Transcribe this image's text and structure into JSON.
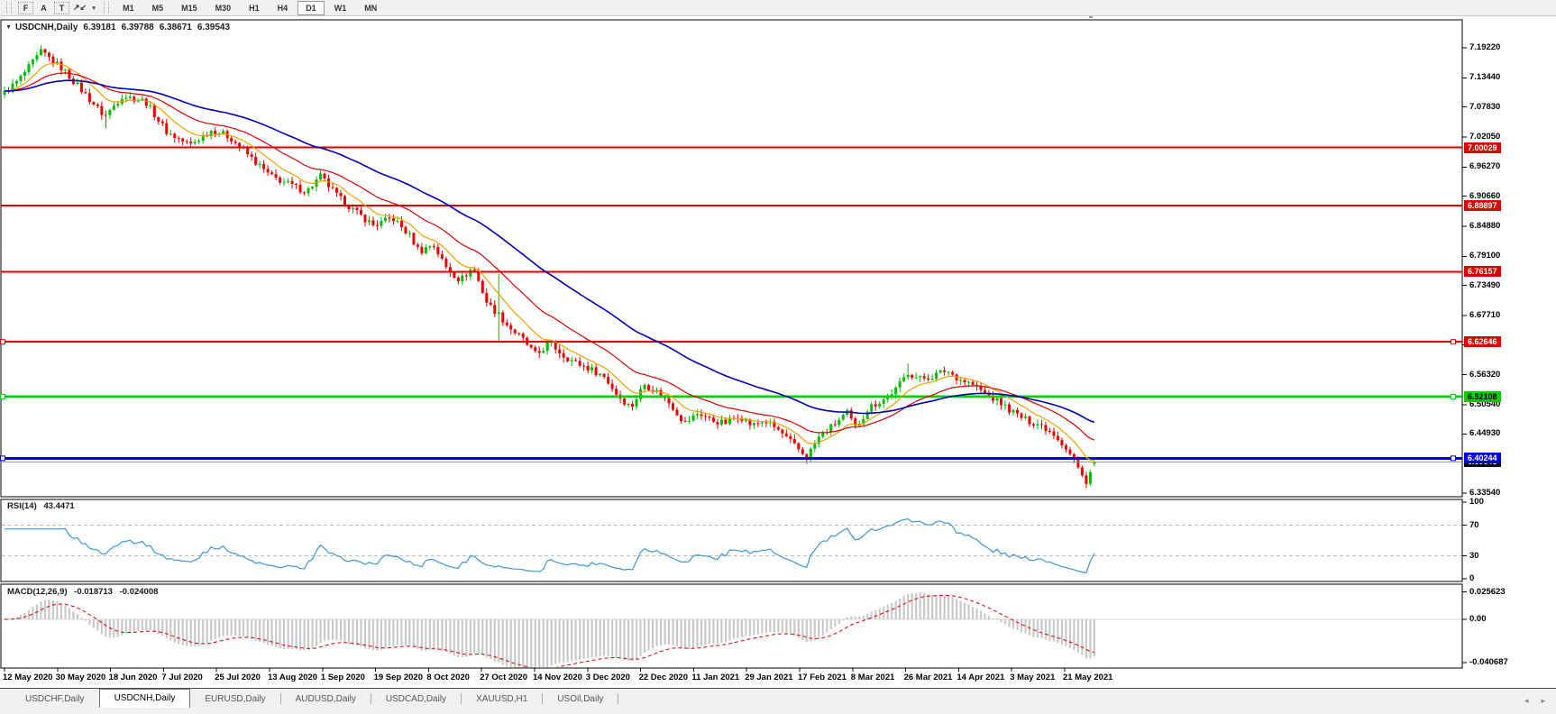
{
  "toolbar": {
    "tools": [
      {
        "name": "fibonacci-retracement",
        "glyph": "F",
        "boxed": true
      },
      {
        "name": "text",
        "glyph": "A",
        "boxed": false
      },
      {
        "name": "text-label",
        "glyph": "T",
        "boxed": true
      },
      {
        "name": "arrows",
        "glyph": "↗↙",
        "boxed": false
      },
      {
        "name": "arrows-dropdown",
        "glyph": "▾",
        "boxed": false
      }
    ],
    "timeframes": [
      "M1",
      "M5",
      "M15",
      "M30",
      "H1",
      "H4",
      "D1",
      "W1",
      "MN"
    ],
    "active_timeframe": "D1"
  },
  "chart": {
    "title": {
      "marker": "▼",
      "symbol": "USDCNH,Daily",
      "open": "6.39181",
      "high": "6.39788",
      "low": "6.38671",
      "close": "6.39543"
    },
    "shift_marker": "▲",
    "price_axis": {
      "ticks": [
        "7.19220",
        "7.13440",
        "7.07830",
        "7.02050",
        "6.96270",
        "6.90660",
        "6.84880",
        "6.79100",
        "6.73490",
        "6.67710",
        "6.62100",
        "6.56320",
        "6.50540",
        "6.44930",
        "6.33540"
      ]
    },
    "levels": [
      {
        "price": "7.00029",
        "color": "red",
        "handles": false
      },
      {
        "price": "6.88897",
        "color": "red",
        "handles": false
      },
      {
        "price": "6.76157",
        "color": "red",
        "handles": false
      },
      {
        "price": "6.62646",
        "color": "red",
        "handles": true
      },
      {
        "price": "6.52108",
        "color": "green",
        "handles": true
      },
      {
        "price": "6.40244",
        "color": "blue",
        "handles": true
      }
    ],
    "bid": {
      "price": "6.39543"
    }
  },
  "rsi": {
    "label": "RSI(14)",
    "value": "43.4471",
    "period": 14,
    "ticks": [
      "100",
      "70",
      "30",
      "0"
    ],
    "upper_level": 70,
    "lower_level": 30
  },
  "macd": {
    "label": "MACD(12,26,9)",
    "macd_value": "-0.018713",
    "signal_value": "-0.024008",
    "fast": 12,
    "slow": 26,
    "signal": 9,
    "ticks": [
      "0.025623",
      "0.00",
      "-0.040687"
    ]
  },
  "date_axis": {
    "labels": [
      "12 May 2020",
      "30 May 2020",
      "18 Jun 2020",
      "7 Jul 2020",
      "25 Jul 2020",
      "13 Aug 2020",
      "1 Sep 2020",
      "19 Sep 2020",
      "8 Oct 2020",
      "27 Oct 2020",
      "14 Nov 2020",
      "3 Dec 2020",
      "22 Dec 2020",
      "11 Jan 2021",
      "29 Jan 2021",
      "17 Feb 2021",
      "8 Mar 2021",
      "26 Mar 2021",
      "14 Apr 2021",
      "3 May 2021",
      "21 May 2021"
    ]
  },
  "tabs": {
    "items": [
      {
        "label": "USDCHF,Daily",
        "active": false
      },
      {
        "label": "USDCNH,Daily",
        "active": true
      },
      {
        "label": "EURUSD,Daily",
        "active": false
      },
      {
        "label": "AUDUSD,Daily",
        "active": false
      },
      {
        "label": "USDCAD,Daily",
        "active": false
      },
      {
        "label": "XAUUSD,H1",
        "active": false
      },
      {
        "label": "USOil,Daily",
        "active": false
      }
    ],
    "scroll_left": "◂",
    "scroll_right": "▸"
  },
  "colors": {
    "bull": "#00bd00",
    "bear": "#ee0000",
    "ma_fast": "#efa100",
    "ma_mid": "#e00000",
    "ma_slow": "#0000bb",
    "level_red": "#e00000",
    "level_green": "#00d300",
    "level_blue": "#0000e6",
    "bid_line": "#9a9a9a",
    "rsi_line": "#3d96dc",
    "rsi_level": "#bdbdbd",
    "macd_hist": "#c6c6c6",
    "macd_signal": "#e00000",
    "label_red_bg": "#dd0000",
    "label_green_bg": "#00cc00",
    "label_blue_bg": "#0000dd",
    "label_black_bg": "#000000"
  },
  "chart_data": {
    "type": "candlestick",
    "symbol": "USDCNH",
    "timeframe": "Daily",
    "num_candles": 270,
    "price_range_top": 7.1922,
    "price_range_bottom": 6.3354,
    "rsi_range": [
      0,
      100
    ],
    "macd_range": [
      -0.040687,
      0.025623
    ],
    "price_anchors": [
      [
        0.0,
        7.105
      ],
      [
        0.013,
        7.13
      ],
      [
        0.034,
        7.185
      ],
      [
        0.054,
        7.15
      ],
      [
        0.071,
        7.11
      ],
      [
        0.092,
        7.06
      ],
      [
        0.108,
        7.1
      ],
      [
        0.129,
        7.09
      ],
      [
        0.149,
        7.03
      ],
      [
        0.17,
        7.005
      ],
      [
        0.191,
        7.035
      ],
      [
        0.207,
        7.02
      ],
      [
        0.224,
        6.985
      ],
      [
        0.244,
        6.945
      ],
      [
        0.261,
        6.93
      ],
      [
        0.277,
        6.915
      ],
      [
        0.29,
        6.945
      ],
      [
        0.306,
        6.905
      ],
      [
        0.323,
        6.875
      ],
      [
        0.339,
        6.85
      ],
      [
        0.356,
        6.865
      ],
      [
        0.372,
        6.83
      ],
      [
        0.381,
        6.8
      ],
      [
        0.393,
        6.815
      ],
      [
        0.405,
        6.77
      ],
      [
        0.418,
        6.745
      ],
      [
        0.43,
        6.77
      ],
      [
        0.443,
        6.7
      ],
      [
        0.453,
        6.68
      ],
      [
        0.463,
        6.655
      ],
      [
        0.476,
        6.63
      ],
      [
        0.488,
        6.6
      ],
      [
        0.5,
        6.625
      ],
      [
        0.513,
        6.6
      ],
      [
        0.525,
        6.585
      ],
      [
        0.537,
        6.575
      ],
      [
        0.55,
        6.56
      ],
      [
        0.562,
        6.525
      ],
      [
        0.575,
        6.5
      ],
      [
        0.587,
        6.545
      ],
      [
        0.599,
        6.53
      ],
      [
        0.612,
        6.505
      ],
      [
        0.624,
        6.47
      ],
      [
        0.637,
        6.49
      ],
      [
        0.649,
        6.475
      ],
      [
        0.661,
        6.47
      ],
      [
        0.674,
        6.485
      ],
      [
        0.686,
        6.465
      ],
      [
        0.698,
        6.475
      ],
      [
        0.711,
        6.455
      ],
      [
        0.723,
        6.43
      ],
      [
        0.736,
        6.405
      ],
      [
        0.748,
        6.445
      ],
      [
        0.76,
        6.465
      ],
      [
        0.773,
        6.49
      ],
      [
        0.781,
        6.46
      ],
      [
        0.793,
        6.5
      ],
      [
        0.806,
        6.515
      ],
      [
        0.818,
        6.535
      ],
      [
        0.829,
        6.568
      ],
      [
        0.839,
        6.555
      ],
      [
        0.851,
        6.56
      ],
      [
        0.864,
        6.572
      ],
      [
        0.876,
        6.555
      ],
      [
        0.888,
        6.545
      ],
      [
        0.901,
        6.525
      ],
      [
        0.913,
        6.51
      ],
      [
        0.926,
        6.49
      ],
      [
        0.938,
        6.475
      ],
      [
        0.95,
        6.468
      ],
      [
        0.963,
        6.45
      ],
      [
        0.973,
        6.425
      ],
      [
        0.981,
        6.4
      ],
      [
        0.988,
        6.37
      ],
      [
        0.993,
        6.358
      ],
      [
        0.997,
        6.38
      ],
      [
        1.0,
        6.395
      ]
    ],
    "spikes": [
      {
        "t": 0.034,
        "high": 7.192
      },
      {
        "t": 0.092,
        "low": 7.038
      },
      {
        "t": 0.453,
        "high": 6.757,
        "low": 6.625
      },
      {
        "t": 0.829,
        "high": 6.585
      }
    ],
    "last_candle": {
      "open": 6.39181,
      "high": 6.39788,
      "low": 6.38671,
      "close": 6.39543
    },
    "moving_averages": [
      {
        "name": "fast",
        "period": 10
      },
      {
        "name": "mid",
        "period": 25
      },
      {
        "name": "slow",
        "period": 55
      }
    ]
  }
}
